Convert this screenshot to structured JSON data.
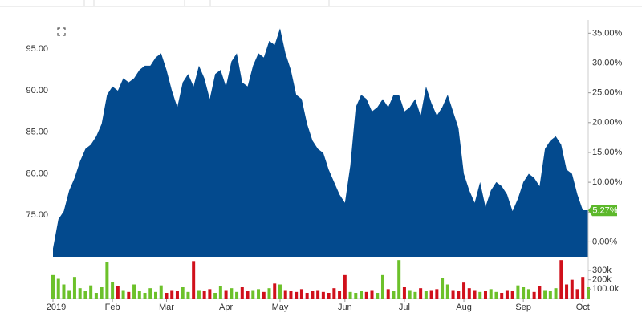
{
  "chart_data": {
    "type": "area",
    "categories": [
      "2019",
      null,
      null,
      null,
      null,
      null,
      null,
      null,
      null,
      null,
      null,
      "Feb",
      null,
      null,
      null,
      null,
      null,
      null,
      null,
      null,
      null,
      "Mar",
      null,
      null,
      null,
      null,
      null,
      null,
      null,
      null,
      null,
      null,
      "Apr",
      null,
      null,
      null,
      null,
      null,
      null,
      null,
      null,
      null,
      "May",
      null,
      null,
      null,
      null,
      null,
      null,
      null,
      null,
      null,
      null,
      null,
      "Jun",
      null,
      null,
      null,
      null,
      null,
      null,
      null,
      null,
      null,
      null,
      "Jul",
      null,
      null,
      null,
      null,
      null,
      null,
      null,
      null,
      null,
      null,
      "Aug",
      null,
      null,
      null,
      null,
      null,
      null,
      null,
      null,
      null,
      null,
      "Sep",
      null,
      null,
      null,
      null,
      null,
      null,
      null,
      null,
      null,
      null,
      "Oct",
      null
    ],
    "series": [
      {
        "color": "#034a8e",
        "values": [
          71.0,
          74.5,
          75.5,
          78.0,
          79.5,
          81.5,
          83.0,
          83.5,
          84.5,
          86.0,
          89.5,
          90.5,
          90.0,
          91.5,
          91.0,
          91.5,
          92.5,
          93.0,
          93.0,
          94.0,
          94.5,
          92.5,
          90.0,
          88.0,
          91.0,
          92.0,
          90.5,
          93.0,
          91.5,
          89.0,
          92.0,
          92.5,
          90.5,
          93.5,
          94.5,
          91.0,
          90.5,
          93.0,
          94.5,
          94.0,
          96.0,
          95.5,
          97.5,
          94.5,
          92.5,
          89.5,
          89.0,
          86.0,
          84.0,
          83.0,
          82.5,
          80.5,
          79.0,
          77.5,
          76.5,
          81.0,
          88.0,
          89.5,
          89.0,
          87.5,
          88.0,
          89.0,
          88.0,
          89.5,
          89.5,
          87.5,
          88.0,
          89.0,
          87.0,
          90.5,
          88.5,
          87.0,
          88.0,
          89.5,
          87.5,
          85.5,
          80.0,
          78.0,
          76.5,
          79.0,
          76.0,
          78.0,
          79.0,
          78.5,
          77.5,
          75.5,
          77.0,
          79.0,
          80.0,
          79.5,
          78.5,
          83.0,
          84.0,
          84.5,
          83.5,
          80.5,
          80.0,
          77.5,
          75.6,
          75.6
        ]
      }
    ],
    "ylim": [
      70,
      98.5
    ],
    "yticks": [
      {
        "value": 75,
        "label": "75.00"
      },
      {
        "value": 80,
        "label": "80.00"
      },
      {
        "value": 85,
        "label": "85.00"
      },
      {
        "value": 90,
        "label": "90.00"
      },
      {
        "value": 95,
        "label": "95.00"
      }
    ],
    "y2lim": [
      -2.5,
      37.2
    ],
    "y2ticks": [
      {
        "value": 0,
        "label": "0.00%"
      },
      {
        "value": 5,
        "label": "5.00%"
      },
      {
        "value": 10,
        "label": "10.00%"
      },
      {
        "value": 15,
        "label": "15.00%"
      },
      {
        "value": 20,
        "label": "20.00%"
      },
      {
        "value": 25,
        "label": "25.00%"
      },
      {
        "value": 30,
        "label": "30.00%"
      },
      {
        "value": 35,
        "label": "35.00%"
      }
    ],
    "last_change": {
      "value": 5.27,
      "label": "5.27%",
      "color": "#5cb82a"
    },
    "volume": {
      "type": "bar",
      "up_color": "#6cc12a",
      "down_color": "#d0101b",
      "values": [
        250000,
        210000,
        150000,
        90000,
        230000,
        110000,
        80000,
        140000,
        60000,
        120000,
        390000,
        180000,
        130000,
        90000,
        70000,
        150000,
        80000,
        60000,
        110000,
        70000,
        140000,
        60000,
        90000,
        80000,
        120000,
        70000,
        400000,
        90000,
        80000,
        100000,
        60000,
        130000,
        90000,
        110000,
        70000,
        120000,
        80000,
        90000,
        100000,
        70000,
        110000,
        160000,
        150000,
        90000,
        80000,
        70000,
        100000,
        60000,
        80000,
        90000,
        70000,
        60000,
        110000,
        80000,
        250000,
        70000,
        60000,
        80000,
        70000,
        90000,
        60000,
        250000,
        100000,
        80000,
        410000,
        120000,
        90000,
        70000,
        110000,
        80000,
        90000,
        100000,
        220000,
        150000,
        90000,
        80000,
        170000,
        110000,
        90000,
        70000,
        80000,
        100000,
        70000,
        60000,
        90000,
        80000,
        140000,
        120000,
        100000,
        70000,
        130000,
        90000,
        80000,
        110000,
        410000,
        150000,
        200000,
        100000,
        230000,
        120000
      ],
      "ylim": [
        0,
        420000
      ],
      "yticks": [
        {
          "value": 100000,
          "label": "100.0k"
        },
        {
          "value": 200000,
          "label": "200k"
        },
        {
          "value": 300000,
          "label": "300k"
        }
      ]
    }
  }
}
